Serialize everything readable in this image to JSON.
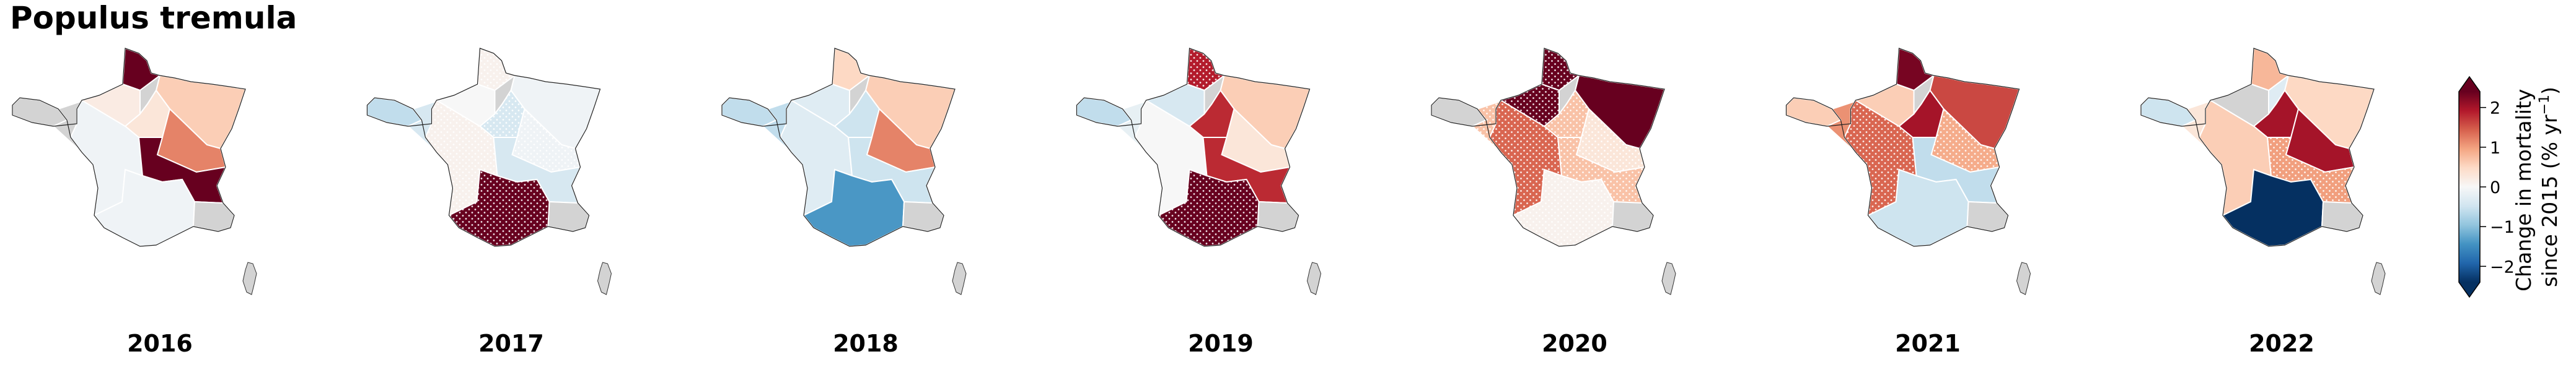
{
  "chart_data": {
    "type": "choropleth",
    "title": "Populus tremula",
    "regions": [
      "Nord",
      "Grand Est",
      "Île-de-France",
      "Centre",
      "Bourgogne-Franche-Comté",
      "Bretagne",
      "Pays de la Loire",
      "Nouvelle-Aquitaine",
      "Auvergne-Rhône-Alpes",
      "Occitanie",
      "Normandie",
      "Provence-Alpes-Côte d'Azur",
      "Corse"
    ],
    "maps": [
      {
        "year": "2016",
        "values": [
          2.4,
          0.6,
          null,
          0.3,
          1.2,
          null,
          null,
          -0.1,
          2.4,
          -0.1,
          0.2,
          null,
          null
        ],
        "hatched": [
          false,
          false,
          false,
          false,
          false,
          false,
          false,
          false,
          false,
          false,
          false,
          false,
          false
        ]
      },
      {
        "year": "2017",
        "values": [
          0.1,
          -0.1,
          null,
          -0.4,
          -0.1,
          -0.6,
          -0.4,
          0.1,
          -0.4,
          2.4,
          0.0,
          null,
          null
        ],
        "hatched": [
          true,
          false,
          false,
          true,
          true,
          false,
          false,
          true,
          false,
          true,
          false,
          false,
          false
        ]
      },
      {
        "year": "2018",
        "values": [
          0.5,
          0.6,
          null,
          -0.5,
          1.2,
          -0.6,
          -0.6,
          -0.3,
          -0.5,
          -1.4,
          -0.3,
          null,
          null
        ],
        "hatched": [
          false,
          false,
          false,
          false,
          false,
          false,
          false,
          false,
          false,
          false,
          false,
          false,
          false
        ]
      },
      {
        "year": "2019",
        "values": [
          1.9,
          0.6,
          null,
          1.8,
          0.3,
          -0.6,
          -0.2,
          0.0,
          1.8,
          2.4,
          -0.4,
          null,
          null
        ],
        "hatched": [
          true,
          false,
          false,
          false,
          false,
          false,
          false,
          false,
          false,
          true,
          false,
          false,
          false
        ]
      },
      {
        "year": "2020",
        "values": [
          2.4,
          2.4,
          null,
          0.7,
          0.3,
          null,
          0.7,
          1.4,
          0.7,
          0.1,
          2.4,
          null,
          null
        ],
        "hatched": [
          true,
          false,
          false,
          true,
          true,
          false,
          true,
          true,
          true,
          true,
          true,
          false,
          false
        ]
      },
      {
        "year": "2021",
        "values": [
          2.3,
          1.6,
          null,
          2.0,
          0.9,
          0.6,
          1.1,
          1.4,
          -0.6,
          -0.5,
          0.6,
          null,
          null
        ],
        "hatched": [
          false,
          false,
          false,
          false,
          true,
          false,
          false,
          true,
          false,
          false,
          false,
          false,
          false
        ]
      },
      {
        "year": "2022",
        "values": [
          0.8,
          0.5,
          -0.3,
          2.0,
          2.0,
          -0.5,
          0.3,
          0.6,
          1.0,
          -2.4,
          null,
          null,
          null
        ],
        "hatched": [
          false,
          false,
          false,
          false,
          false,
          false,
          false,
          false,
          true,
          false,
          false,
          false,
          false
        ]
      }
    ],
    "colorbar": {
      "label_line1": "Change in mortality",
      "label_line2_prefix": "since 2015 (% yr",
      "label_line2_sup": "−1",
      "label_line2_suffix": ")",
      "vmin": -2.4,
      "vmax": 2.4,
      "ticks": [
        {
          "value": 2,
          "label": "2"
        },
        {
          "value": 1,
          "label": "1"
        },
        {
          "value": 0,
          "label": "0"
        },
        {
          "value": -1,
          "label": "−1"
        },
        {
          "value": -2,
          "label": "−2"
        }
      ],
      "colormap": "RdBu_r",
      "extend": "both",
      "colors": [
        "#053061",
        "#2166ac",
        "#4393c3",
        "#92c5de",
        "#d1e5f0",
        "#f7f7f7",
        "#fddbc7",
        "#f4a582",
        "#d6604d",
        "#b2182b",
        "#67001f"
      ]
    },
    "no_data_color": "#d3d3d3"
  }
}
